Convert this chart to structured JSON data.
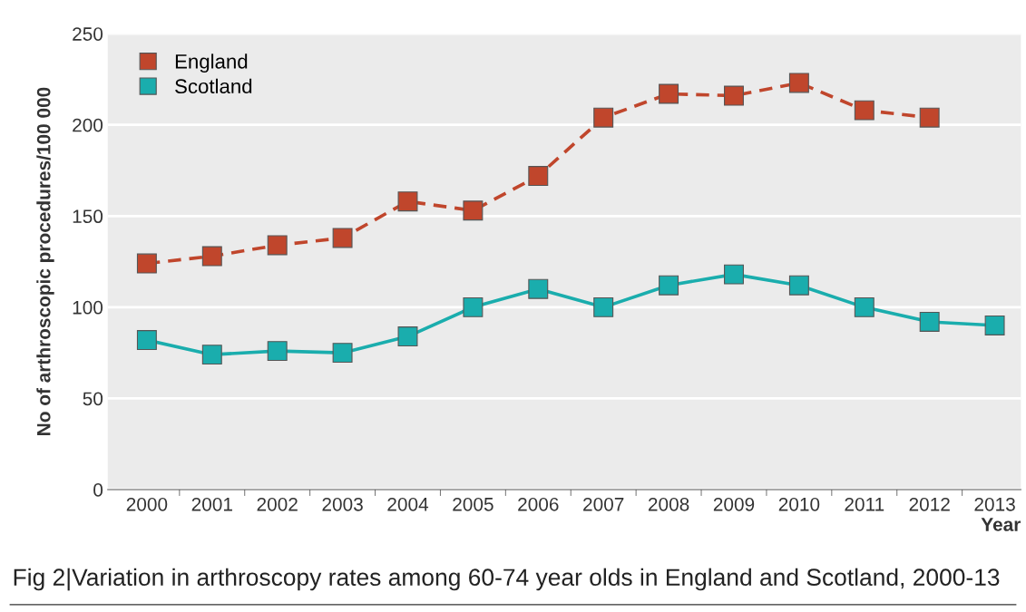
{
  "chart_data": {
    "type": "line",
    "title": "Fig 2|Variation in arthroscopy rates among 60-74 year olds in England and Scotland, 2000-13",
    "xlabel": "Year",
    "ylabel": "No of arthroscopic procedures/100 000",
    "categories": [
      "2000",
      "2001",
      "2002",
      "2003",
      "2004",
      "2005",
      "2006",
      "2007",
      "2008",
      "2009",
      "2010",
      "2011",
      "2012",
      "2013"
    ],
    "series": [
      {
        "name": "England",
        "color": "#c0462c",
        "line_style": "dashed",
        "values": [
          124,
          128,
          134,
          138,
          158,
          153,
          172,
          204,
          217,
          216,
          223,
          208,
          204,
          null
        ]
      },
      {
        "name": "Scotland",
        "color": "#1aadad",
        "line_style": "solid",
        "values": [
          82,
          74,
          76,
          75,
          84,
          100,
          110,
          100,
          112,
          118,
          112,
          100,
          92,
          90
        ]
      }
    ],
    "ylim": [
      0,
      250
    ],
    "yticks": [
      0,
      50,
      100,
      150,
      200,
      250
    ],
    "grid": "y",
    "legend": "top left",
    "marker": "square"
  }
}
